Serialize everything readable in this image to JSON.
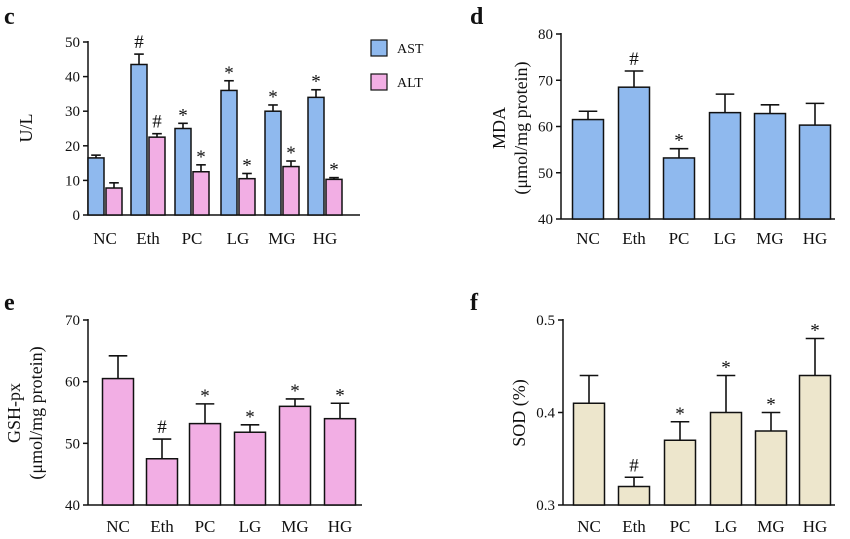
{
  "colors": {
    "ast": "#8fb9ee",
    "alt": "#f2aee4",
    "mda": "#8fb9ee",
    "gsh": "#f2aee4",
    "sod": "#ede6cc",
    "stroke": "#111111"
  },
  "chart_data": [
    {
      "id": "c",
      "panel": "c",
      "type": "bar",
      "categories": [
        "NC",
        "Eth",
        "PC",
        "LG",
        "MG",
        "HG"
      ],
      "ylabel": "U/L",
      "ylabel_sub": "",
      "ylim": [
        0,
        50
      ],
      "yticks": [
        "0",
        "10",
        "20",
        "30",
        "40",
        "50"
      ],
      "legend": {
        "position": "top-right",
        "labels": [
          "AST",
          "ALT"
        ]
      },
      "series": [
        {
          "name": "AST",
          "color_key": "ast",
          "values": [
            16.5,
            43.5,
            25,
            36,
            30,
            34
          ],
          "errors": [
            0.8,
            3,
            1.5,
            2.8,
            1.8,
            2.2
          ],
          "sig": [
            "",
            "#",
            "*",
            "*",
            "*",
            "*"
          ]
        },
        {
          "name": "ALT",
          "color_key": "alt",
          "values": [
            7.8,
            22.5,
            12.5,
            10.5,
            14,
            10.3
          ],
          "errors": [
            1.5,
            1,
            2,
            1.5,
            1.6,
            0.5
          ],
          "sig": [
            "",
            "#",
            "*",
            "*",
            "*",
            "*"
          ]
        }
      ]
    },
    {
      "id": "d",
      "panel": "d",
      "type": "bar",
      "categories": [
        "NC",
        "Eth",
        "PC",
        "LG",
        "MG",
        "HG"
      ],
      "ylabel": "MDA",
      "ylabel_sub": "(μmol/mg protein)",
      "ylim": [
        40,
        80
      ],
      "yticks": [
        "40",
        "50",
        "60",
        "70",
        "80"
      ],
      "series": [
        {
          "name": "MDA",
          "color_key": "mda",
          "values": [
            61.5,
            68.5,
            53.2,
            63,
            62.8,
            60.3
          ],
          "errors": [
            1.8,
            3.5,
            2,
            4,
            1.9,
            4.7
          ],
          "sig": [
            "",
            "#",
            "*",
            "",
            "",
            ""
          ]
        }
      ]
    },
    {
      "id": "e",
      "panel": "e",
      "type": "bar",
      "categories": [
        "NC",
        "Eth",
        "PC",
        "LG",
        "MG",
        "HG"
      ],
      "ylabel": "GSH-px",
      "ylabel_sub": "(μmol/mg protein)",
      "ylim": [
        40,
        70
      ],
      "yticks": [
        "40",
        "50",
        "60",
        "70"
      ],
      "series": [
        {
          "name": "GSH-px",
          "color_key": "gsh",
          "values": [
            60.5,
            47.5,
            53.2,
            51.8,
            56,
            54
          ],
          "errors": [
            3.7,
            3.2,
            3.2,
            1.2,
            1.2,
            2.5
          ],
          "sig": [
            "",
            "#",
            "*",
            "*",
            "*",
            "*"
          ]
        }
      ]
    },
    {
      "id": "f",
      "panel": "f",
      "type": "bar",
      "categories": [
        "NC",
        "Eth",
        "PC",
        "LG",
        "MG",
        "HG"
      ],
      "ylabel": "SOD (%)",
      "ylabel_sub": "",
      "ylim": [
        0.3,
        0.5
      ],
      "yticks": [
        "0.3",
        "0.4",
        "0.5"
      ],
      "series": [
        {
          "name": "SOD",
          "color_key": "sod",
          "values": [
            0.41,
            0.32,
            0.37,
            0.4,
            0.38,
            0.44
          ],
          "errors": [
            0.03,
            0.01,
            0.02,
            0.04,
            0.02,
            0.04
          ],
          "sig": [
            "",
            "#",
            "*",
            "*",
            "*",
            "*"
          ]
        }
      ]
    }
  ]
}
